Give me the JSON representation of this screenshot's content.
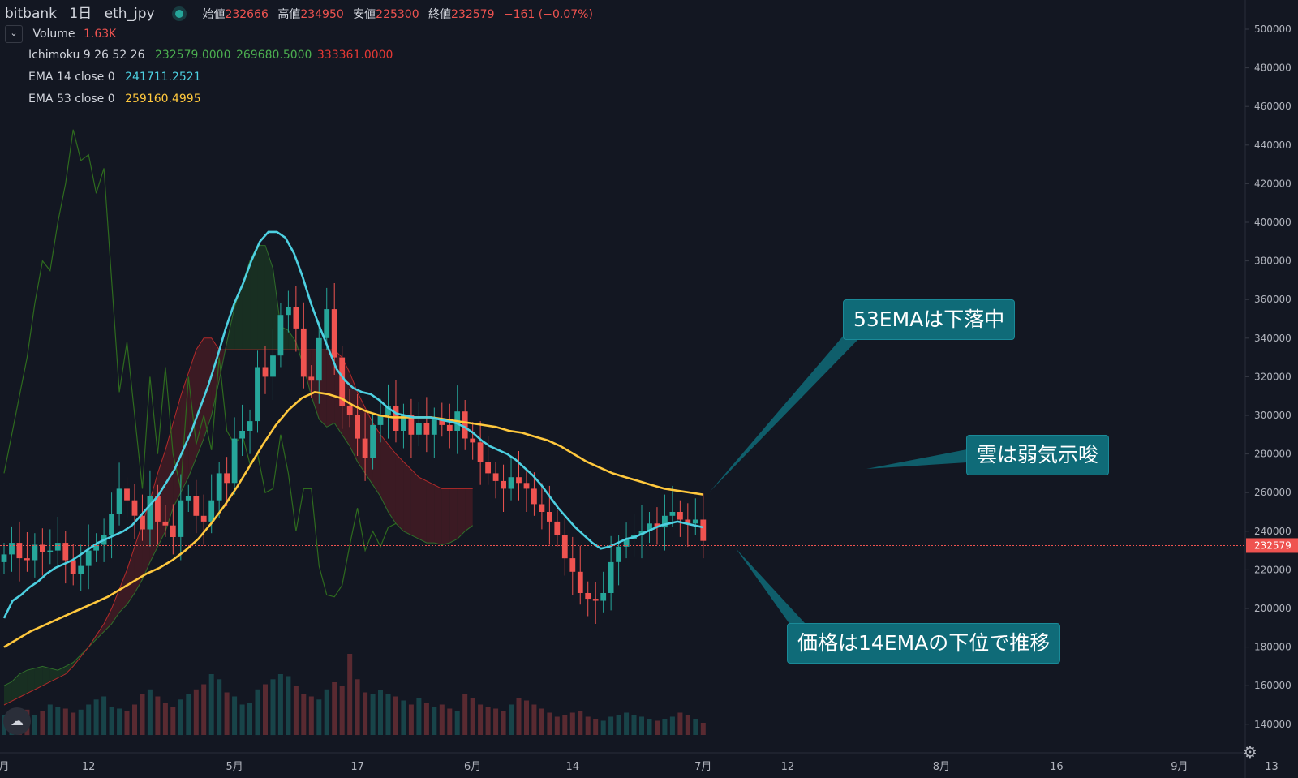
{
  "header": {
    "symbol": "bitbank",
    "interval": "1日",
    "pair": "eth_jpy",
    "open_label": "始値",
    "open": "232666",
    "high_label": "高値",
    "high": "234950",
    "low_label": "安値",
    "low": "225300",
    "close_label": "終値",
    "close": "232579",
    "change": "−161 (−0.07%)"
  },
  "indicators": {
    "volume": {
      "name": "Volume",
      "value": "1.63K"
    },
    "ichimoku": {
      "name": "Ichimoku 9 26 52 26",
      "v1": "232579.0000",
      "v2": "269680.5000",
      "v3": "333361.0000"
    },
    "ema14": {
      "name": "EMA 14 close 0",
      "value": "241711.2521"
    },
    "ema53": {
      "name": "EMA 53 close 0",
      "value": "259160.4995"
    }
  },
  "callouts": {
    "ema53": "53EMAは下落中",
    "cloud": "雲は弱気示唆",
    "price": "価格は14EMAの下位で推移"
  },
  "colors": {
    "background": "#131722",
    "up": "#26a69a",
    "down": "#ef5350",
    "ema14": "#4dd0e1",
    "ema53": "#ffc83d",
    "cloud_bear": "#4a1c24",
    "cloud_bull": "#1b3a22",
    "chikou": "#2e6b1e",
    "callout": "#0f6b78"
  },
  "icons": {
    "collapse": "chevron-down-icon",
    "logo": "tradingview-logo-icon",
    "settings": "gear-icon"
  },
  "chart_data": {
    "type": "candlestick",
    "y_ticks": [
      "500000",
      "480000",
      "460000",
      "440000",
      "420000",
      "400000",
      "380000",
      "360000",
      "340000",
      "320000",
      "300000",
      "280000",
      "260000",
      "240000",
      "220000",
      "200000",
      "180000",
      "160000",
      "140000"
    ],
    "ylim": [
      130000,
      510000
    ],
    "current_price_label": "232579",
    "x_ticks": [
      {
        "label": "月",
        "day": 0
      },
      {
        "label": "12",
        "day": 11
      },
      {
        "label": "5月",
        "day": 30
      },
      {
        "label": "17",
        "day": 46
      },
      {
        "label": "6月",
        "day": 61
      },
      {
        "label": "14",
        "day": 74
      },
      {
        "label": "7月",
        "day": 91
      },
      {
        "label": "12",
        "day": 102
      },
      {
        "label": "8月",
        "day": 122
      },
      {
        "label": "16",
        "day": 137
      },
      {
        "label": "9月",
        "day": 153
      },
      {
        "label": "13",
        "day": 165
      }
    ],
    "closes": [
      228000,
      234000,
      226000,
      225000,
      233000,
      229000,
      230000,
      234000,
      225000,
      218000,
      222000,
      230000,
      233000,
      238000,
      249000,
      262000,
      256000,
      248000,
      241000,
      258000,
      245000,
      243000,
      237000,
      256000,
      258000,
      248000,
      245000,
      256000,
      270000,
      265000,
      288000,
      292000,
      297000,
      325000,
      320000,
      331000,
      352000,
      356000,
      345000,
      320000,
      318000,
      340000,
      355000,
      330000,
      305000,
      300000,
      288000,
      278000,
      295000,
      300000,
      305000,
      292000,
      300000,
      290000,
      296000,
      290000,
      298000,
      295000,
      292000,
      302000,
      288000,
      286000,
      276000,
      270000,
      266000,
      262000,
      268000,
      265000,
      262000,
      254000,
      250000,
      245000,
      238000,
      226000,
      219000,
      208000,
      205000,
      204000,
      208000,
      224000,
      232000,
      236000,
      238000,
      240000,
      244000,
      242000,
      248000,
      250000,
      246000,
      244000,
      246000,
      235000
    ],
    "ema14": [
      195000,
      204000,
      207000,
      211000,
      214000,
      218000,
      221000,
      223000,
      225000,
      228000,
      231000,
      234000,
      236000,
      238000,
      240000,
      243000,
      248000,
      253000,
      258000,
      265000,
      272000,
      282000,
      292000,
      304000,
      316000,
      330000,
      345000,
      358000,
      368000,
      380000,
      390000,
      395000,
      395000,
      392000,
      384000,
      372000,
      358000,
      346000,
      335000,
      324000,
      318000,
      314000,
      312000,
      311000,
      308000,
      304000,
      301000,
      300000,
      299000,
      299000,
      299000,
      298000,
      297000,
      296000,
      294000,
      291000,
      287000,
      284000,
      282000,
      280000,
      277000,
      273000,
      269000,
      264000,
      258000,
      252000,
      247000,
      242000,
      238000,
      234000,
      231000,
      232000,
      234000,
      236000,
      237000,
      239000,
      241000,
      243000,
      244000,
      245000,
      244000,
      243000,
      242000
    ],
    "ema53": [
      180000,
      184000,
      188000,
      191000,
      194000,
      197000,
      200000,
      203000,
      206000,
      210000,
      214000,
      218000,
      221000,
      225000,
      230000,
      236000,
      244000,
      253000,
      263000,
      274000,
      285000,
      295000,
      303000,
      309000,
      312000,
      311000,
      309000,
      305000,
      302000,
      300000,
      299000,
      299000,
      299000,
      299000,
      298000,
      297000,
      296000,
      295000,
      294000,
      292000,
      291000,
      289000,
      287000,
      284000,
      280000,
      276000,
      273000,
      270000,
      268000,
      266000,
      264000,
      262000,
      261000,
      260000,
      259000
    ],
    "span_a": [
      160000,
      162000,
      166000,
      168000,
      169000,
      170000,
      169000,
      168000,
      170000,
      172000,
      176000,
      180000,
      184000,
      188000,
      192000,
      198000,
      202000,
      208000,
      215000,
      224000,
      232000,
      240000,
      252000,
      260000,
      268000,
      278000,
      288000,
      300000,
      318000,
      338000,
      356000,
      368000,
      380000,
      388000,
      388000,
      376000,
      346000,
      344000,
      338000,
      325000,
      310000,
      298000,
      294000,
      296000,
      290000,
      284000,
      276000,
      270000,
      264000,
      258000,
      250000,
      244000,
      240000,
      238000,
      236000,
      234000,
      234000,
      233000,
      234000,
      236000,
      240000,
      243000
    ],
    "span_b": [
      150000,
      152000,
      154000,
      156000,
      158000,
      160000,
      162000,
      164000,
      166000,
      170000,
      175000,
      180000,
      186000,
      192000,
      200000,
      210000,
      220000,
      232000,
      244000,
      256000,
      270000,
      282000,
      296000,
      310000,
      322000,
      334000,
      340000,
      340000,
      334000,
      334000,
      334000,
      334000,
      334000,
      334000,
      334000,
      334000,
      334000,
      334000,
      334000,
      334000,
      334000,
      334000,
      334000,
      334000,
      330000,
      322000,
      312000,
      304000,
      296000,
      290000,
      285000,
      280000,
      276000,
      272000,
      268000,
      266000,
      264000,
      262000,
      262000,
      262000,
      262000,
      262000
    ],
    "chikou": [
      270000,
      290000,
      310000,
      330000,
      358000,
      380000,
      375000,
      400000,
      420000,
      448000,
      432000,
      435000,
      415000,
      428000,
      370000,
      312000,
      338000,
      300000,
      262000,
      320000,
      280000,
      325000,
      280000,
      262000,
      320000,
      285000,
      300000,
      282000,
      330000,
      292000,
      285000,
      290000,
      275000,
      280000,
      260000,
      262000,
      290000,
      270000,
      240000,
      262000,
      262000,
      222000,
      207000,
      206000,
      212000,
      233000,
      252000,
      230000,
      240000,
      232000,
      242000,
      244000
    ],
    "volumes": [
      20,
      22,
      18,
      25,
      20,
      24,
      30,
      28,
      26,
      22,
      25,
      30,
      35,
      38,
      28,
      26,
      24,
      30,
      40,
      45,
      38,
      32,
      28,
      35,
      40,
      45,
      50,
      60,
      55,
      42,
      38,
      30,
      32,
      45,
      50,
      55,
      60,
      58,
      48,
      40,
      38,
      35,
      45,
      52,
      48,
      80,
      55,
      42,
      40,
      44,
      40,
      38,
      34,
      30,
      36,
      32,
      28,
      30,
      26,
      24,
      40,
      36,
      30,
      28,
      26,
      24,
      30,
      36,
      34,
      30,
      26,
      22,
      18,
      20,
      22,
      24,
      18,
      16,
      14,
      18,
      20,
      22,
      20,
      18,
      16,
      14,
      16,
      18,
      22,
      20,
      16,
      12
    ]
  }
}
